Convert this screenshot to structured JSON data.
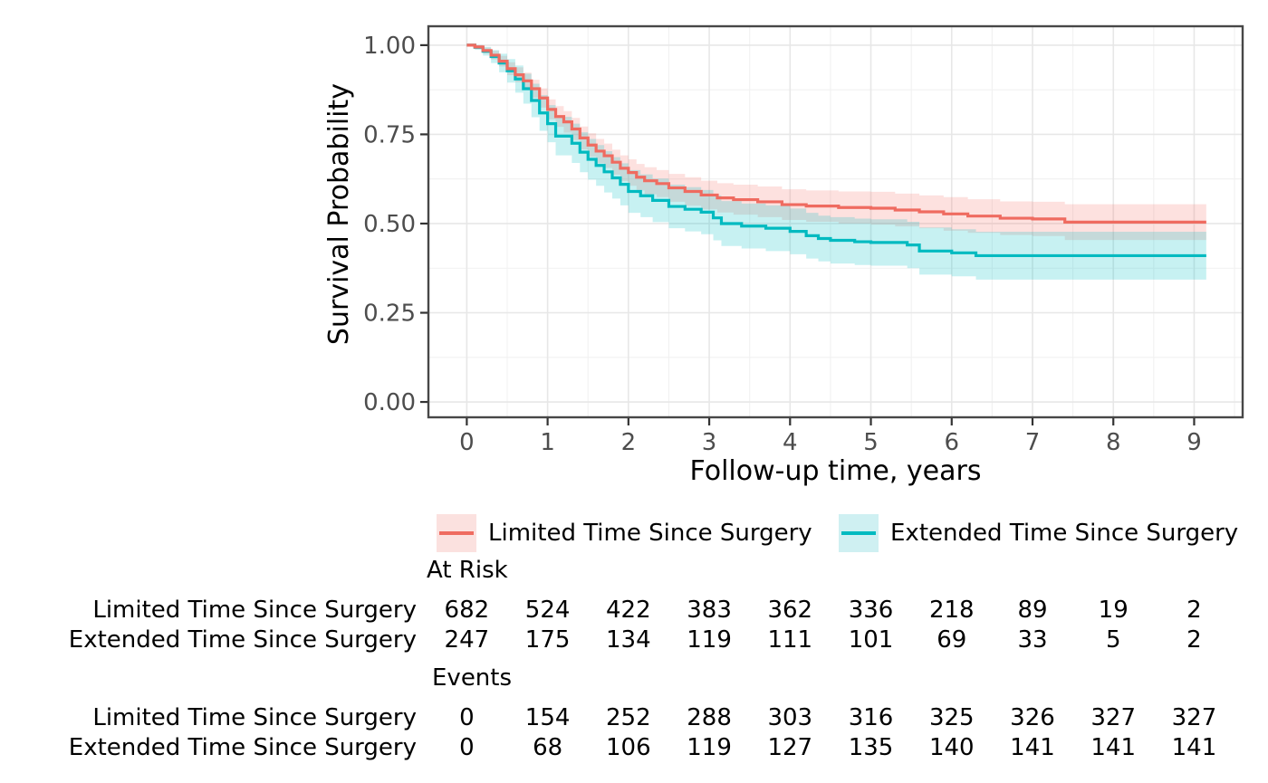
{
  "figure": {
    "background": "#FFFFFF",
    "text_color": "#000000",
    "tick_label_color": "#4D4D4D",
    "panel_border_color": "#474747",
    "grid_major_color": "#E7E7E7",
    "grid_minor_color": "#F1F1F1"
  },
  "legend": {
    "items": [
      {
        "label": "Limited Time Since Surgery",
        "line_color": "#EF6B60",
        "band_color": "#FBE1DF"
      },
      {
        "label": "Extended Time Since Surgery",
        "line_color": "#00BAC0",
        "band_color": "#CFF0F2"
      }
    ]
  },
  "risk_table": {
    "at_risk_header": "At Risk",
    "events_header": "Events",
    "time_columns": [
      0,
      1,
      2,
      3,
      4,
      5,
      6,
      7,
      8,
      9
    ],
    "rows_at_risk": [
      {
        "label": "Limited Time Since Surgery",
        "values": [
          682,
          524,
          422,
          383,
          362,
          336,
          218,
          89,
          19,
          2
        ]
      },
      {
        "label": "Extended Time Since Surgery",
        "values": [
          247,
          175,
          134,
          119,
          111,
          101,
          69,
          33,
          5,
          2
        ]
      }
    ],
    "rows_events": [
      {
        "label": "Limited Time Since Surgery",
        "values": [
          0,
          154,
          252,
          288,
          303,
          316,
          325,
          326,
          327,
          327
        ]
      },
      {
        "label": "Extended Time Since Surgery",
        "values": [
          0,
          68,
          106,
          119,
          127,
          135,
          140,
          141,
          141,
          141
        ]
      }
    ]
  },
  "chart_data": {
    "type": "line",
    "subtype": "kaplan-meier-step",
    "title": "",
    "xlabel": "Follow-up time, years",
    "ylabel": "Survival Probability",
    "xlim": [
      -0.475,
      9.6
    ],
    "ylim": [
      -0.043,
      1.053
    ],
    "x_ticks": [
      0,
      1,
      2,
      3,
      4,
      5,
      6,
      7,
      8,
      9
    ],
    "x_minor_ticks": [
      0.5,
      1.5,
      2.5,
      3.5,
      4.5,
      5.5,
      6.5,
      7.5,
      8.5,
      9.5
    ],
    "y_ticks": [
      1.0,
      0.75,
      0.5,
      0.25,
      0.0
    ],
    "y_tick_labels": [
      "1.00",
      "0.75",
      "0.50",
      "0.25",
      "0.00"
    ],
    "y_minor_ticks": [
      0.875,
      0.625,
      0.375,
      0.125
    ],
    "grid": true,
    "legend_position": "bottom",
    "series": [
      {
        "name": "Limited Time Since Surgery",
        "color": "#EF6B60",
        "band_color": "rgba(248,118,109,0.22)",
        "points": [
          [
            0,
            1.0,
            0.003
          ],
          [
            0.1,
            0.995,
            0.005
          ],
          [
            0.2,
            0.985,
            0.008
          ],
          [
            0.3,
            0.972,
            0.012
          ],
          [
            0.4,
            0.955,
            0.015
          ],
          [
            0.5,
            0.934,
            0.018
          ],
          [
            0.6,
            0.917,
            0.021
          ],
          [
            0.7,
            0.9,
            0.023
          ],
          [
            0.8,
            0.878,
            0.025
          ],
          [
            0.9,
            0.852,
            0.027
          ],
          [
            1.0,
            0.82,
            0.028
          ],
          [
            1.1,
            0.8,
            0.029
          ],
          [
            1.2,
            0.785,
            0.03
          ],
          [
            1.3,
            0.765,
            0.031
          ],
          [
            1.4,
            0.74,
            0.032
          ],
          [
            1.5,
            0.72,
            0.033
          ],
          [
            1.6,
            0.703,
            0.034
          ],
          [
            1.7,
            0.69,
            0.034
          ],
          [
            1.8,
            0.672,
            0.035
          ],
          [
            1.9,
            0.655,
            0.036
          ],
          [
            2.0,
            0.643,
            0.037
          ],
          [
            2.1,
            0.63,
            0.037
          ],
          [
            2.2,
            0.62,
            0.038
          ],
          [
            2.35,
            0.612,
            0.038
          ],
          [
            2.5,
            0.6,
            0.039
          ],
          [
            2.7,
            0.59,
            0.04
          ],
          [
            2.9,
            0.58,
            0.04
          ],
          [
            3.1,
            0.572,
            0.041
          ],
          [
            3.3,
            0.567,
            0.042
          ],
          [
            3.6,
            0.561,
            0.043
          ],
          [
            3.9,
            0.553,
            0.043
          ],
          [
            4.2,
            0.549,
            0.044
          ],
          [
            4.6,
            0.545,
            0.045
          ],
          [
            5.0,
            0.543,
            0.046
          ],
          [
            5.3,
            0.538,
            0.046
          ],
          [
            5.6,
            0.533,
            0.046
          ],
          [
            5.9,
            0.527,
            0.047
          ],
          [
            6.2,
            0.521,
            0.047
          ],
          [
            6.6,
            0.515,
            0.047
          ],
          [
            7.0,
            0.513,
            0.048
          ],
          [
            7.4,
            0.504,
            0.05
          ],
          [
            9.15,
            0.504,
            0.05
          ]
        ]
      },
      {
        "name": "Extended Time Since Surgery",
        "color": "#00BAC0",
        "band_color": "rgba(0,191,196,0.22)",
        "points": [
          [
            0,
            1.0,
            0.004
          ],
          [
            0.1,
            0.994,
            0.007
          ],
          [
            0.2,
            0.983,
            0.012
          ],
          [
            0.3,
            0.968,
            0.018
          ],
          [
            0.4,
            0.95,
            0.026
          ],
          [
            0.5,
            0.928,
            0.033
          ],
          [
            0.6,
            0.905,
            0.038
          ],
          [
            0.7,
            0.878,
            0.042
          ],
          [
            0.8,
            0.845,
            0.047
          ],
          [
            0.9,
            0.81,
            0.05
          ],
          [
            1.0,
            0.78,
            0.052
          ],
          [
            1.1,
            0.745,
            0.054
          ],
          [
            1.3,
            0.725,
            0.055
          ],
          [
            1.4,
            0.7,
            0.056
          ],
          [
            1.5,
            0.68,
            0.057
          ],
          [
            1.6,
            0.663,
            0.057
          ],
          [
            1.7,
            0.645,
            0.058
          ],
          [
            1.8,
            0.628,
            0.058
          ],
          [
            1.9,
            0.61,
            0.059
          ],
          [
            2.0,
            0.59,
            0.06
          ],
          [
            2.15,
            0.578,
            0.06
          ],
          [
            2.3,
            0.565,
            0.061
          ],
          [
            2.5,
            0.548,
            0.061
          ],
          [
            2.7,
            0.54,
            0.062
          ],
          [
            2.9,
            0.532,
            0.062
          ],
          [
            3.05,
            0.516,
            0.063
          ],
          [
            3.15,
            0.5,
            0.063
          ],
          [
            3.4,
            0.493,
            0.063
          ],
          [
            3.7,
            0.487,
            0.064
          ],
          [
            4.0,
            0.478,
            0.064
          ],
          [
            4.2,
            0.466,
            0.064
          ],
          [
            4.35,
            0.458,
            0.064
          ],
          [
            4.5,
            0.453,
            0.065
          ],
          [
            4.8,
            0.449,
            0.065
          ],
          [
            5.0,
            0.447,
            0.065
          ],
          [
            5.45,
            0.44,
            0.065
          ],
          [
            5.6,
            0.423,
            0.066
          ],
          [
            6.0,
            0.418,
            0.066
          ],
          [
            6.3,
            0.41,
            0.067
          ],
          [
            9.15,
            0.41,
            0.067
          ]
        ]
      }
    ]
  }
}
